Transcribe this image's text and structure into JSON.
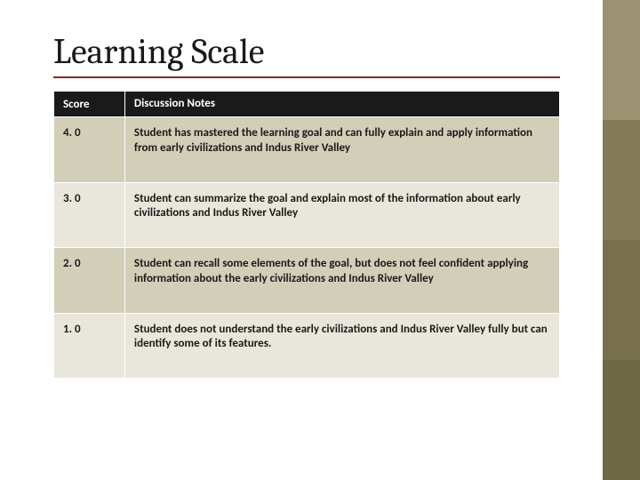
{
  "title": "Learning Scale",
  "table": {
    "columns": [
      "Score",
      "Discussion Notes"
    ],
    "rows": [
      {
        "score": "4. 0",
        "notes": "Student has mastered the learning goal and can fully explain and apply information from early civilizations and Indus River Valley"
      },
      {
        "score": "3. 0",
        "notes": "Student can summarize the goal and explain most of the information about early civilizations and Indus River Valley"
      },
      {
        "score": "2. 0",
        "notes": "Student can recall some elements of the goal, but does not feel confident applying information about the early civilizations and Indus River Valley"
      },
      {
        "score": "1. 0",
        "notes": "Student does not understand the early civilizations and Indus River Valley fully but can identify some of its features."
      }
    ]
  },
  "colors": {
    "sidebar_stripes": [
      "#9b9173",
      "#847a58",
      "#78704f",
      "#6f6847"
    ],
    "title_underline": "#8a2629",
    "header_bg": "#1a1a1a",
    "row_alt_bg": "#d2ceb8",
    "row_norm_bg": "#e9e7dc",
    "text": "#1a1a1a"
  },
  "typography": {
    "title_font": "Cambria",
    "title_size_pt": 40,
    "body_font": "Calibri",
    "body_size_pt": 13,
    "body_weight": "bold"
  }
}
